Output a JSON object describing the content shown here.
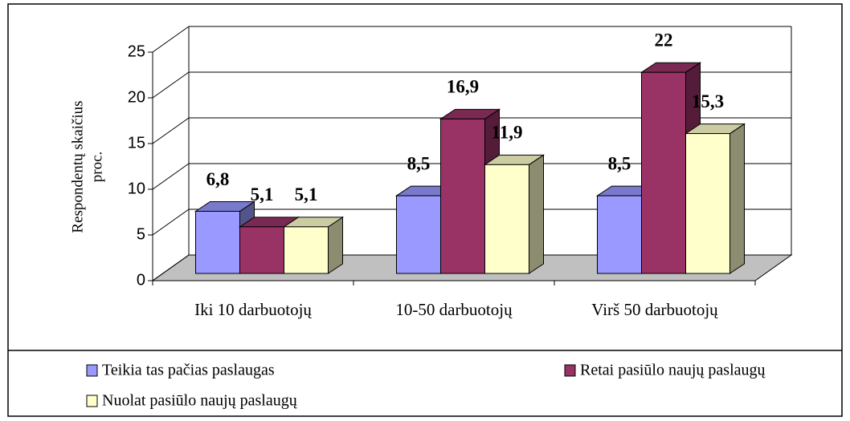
{
  "chart_data": {
    "type": "bar3d",
    "ylabel": [
      "Respondentų skaičius",
      "proc."
    ],
    "categories": [
      "Iki 10 darbuotojų",
      "10-50 darbuotojų",
      "Virš 50 darbuotojų"
    ],
    "series": [
      {
        "name": "Teikia tas pačias paslaugas",
        "color": "#9999ff",
        "values": [
          6.8,
          8.5,
          8.5
        ],
        "value_labels": [
          "6,8",
          "8,5",
          "8,5"
        ]
      },
      {
        "name": "Retai pasiūlo naujų paslaugų",
        "color": "#993366",
        "values": [
          5.1,
          16.9,
          22
        ],
        "value_labels": [
          "5,1",
          "16,9",
          "22"
        ]
      },
      {
        "name": "Nuolat pasiūlo naujų paslaugų",
        "color": "#ffffcc",
        "values": [
          5.1,
          11.9,
          15.3
        ],
        "value_labels": [
          "5,1",
          "11,9",
          "15,3"
        ]
      }
    ],
    "ylim": [
      0,
      25
    ],
    "yticks": [
      0,
      5,
      10,
      15,
      20,
      25
    ],
    "grid": true,
    "floor_color": "#c0c0c0"
  }
}
